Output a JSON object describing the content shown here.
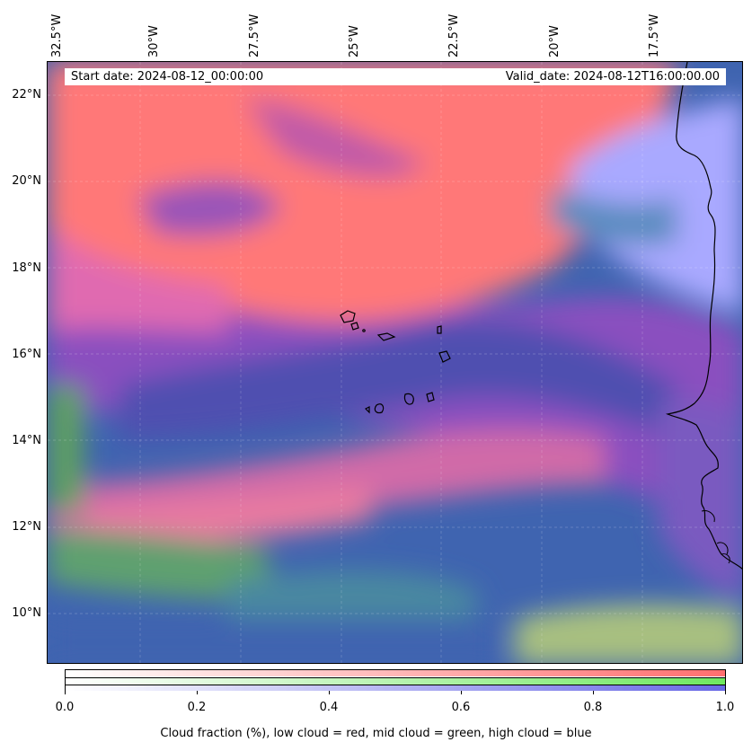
{
  "header": {
    "start_date": "Start date: 2024-08-12_00:00:00",
    "valid_date": "Valid_date: 2024-08-12T16:00:00.00"
  },
  "axes": {
    "lon_labels": [
      "32.5°W",
      "30°W",
      "27.5°W",
      "25°W",
      "22.5°W",
      "20°W",
      "17.5°W"
    ],
    "lat_labels": [
      "22°N",
      "20°N",
      "18°N",
      "16°N",
      "14°N",
      "12°N",
      "10°N"
    ]
  },
  "colorbar": {
    "ticks": [
      "0.0",
      "0.2",
      "0.4",
      "0.6",
      "0.8",
      "1.0"
    ],
    "caption": "Cloud fraction (%), low cloud = red, mid cloud = green, high cloud = blue",
    "colors": {
      "low": "#ff6f6f",
      "mid": "#6fe860",
      "high": "#6a6ae6"
    }
  },
  "map": {
    "layers": [
      "low-cloud",
      "mid-cloud",
      "high-cloud",
      "coastline",
      "islands"
    ]
  }
}
